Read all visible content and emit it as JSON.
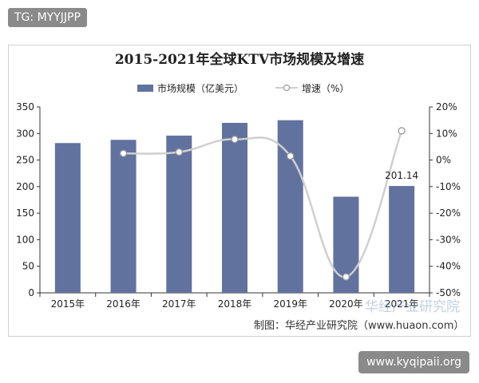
{
  "top_tag": "TG: MYYJJPP",
  "bottom_tag": "www.kyqipaii.org",
  "watermark": "华经产业研究院",
  "credit": "制图：华经产业研究院（www.huaon.com）",
  "colors": {
    "bar": "#62729f",
    "line": "#cfcfcf",
    "marker_fill": "#ffffff",
    "marker_stroke": "#9a9a9a",
    "axis": "#333333"
  },
  "chart_data": {
    "type": "bar",
    "title": "2015-2021年全球KTV市场规模及增速",
    "categories": [
      "2015年",
      "2016年",
      "2017年",
      "2018年",
      "2019年",
      "2020年",
      "2021年"
    ],
    "series": [
      {
        "name": "市场规模（亿美元）",
        "type": "bar",
        "axis": "left",
        "values": [
          282,
          288,
          296,
          320,
          325,
          181,
          201.14
        ]
      },
      {
        "name": "增速（%）",
        "type": "line",
        "axis": "right",
        "values": [
          null,
          2.5,
          3.0,
          7.8,
          1.5,
          -44,
          11
        ]
      }
    ],
    "y_left": {
      "lim": [
        0,
        350
      ],
      "ticks": [
        "0",
        "50",
        "100",
        "150",
        "200",
        "250",
        "300",
        "350"
      ]
    },
    "y_right": {
      "lim": [
        -50,
        20
      ],
      "ticks": [
        "-50%",
        "-40%",
        "-30%",
        "-20%",
        "-10%",
        "0%",
        "10%",
        "20%"
      ]
    },
    "data_labels": [
      {
        "index": 6,
        "text": "201.14"
      }
    ],
    "legend_position": "top",
    "grid": false
  }
}
